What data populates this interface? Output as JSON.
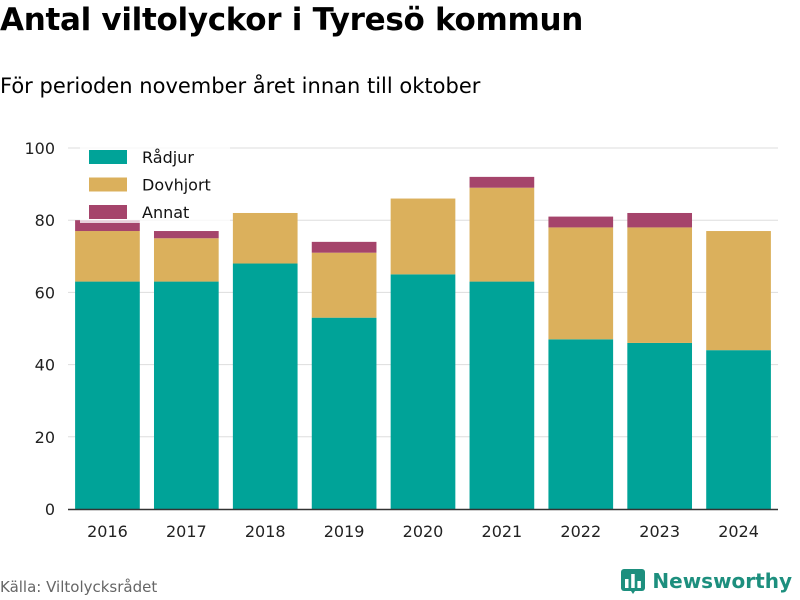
{
  "title": "Antal viltolyckor i Tyresö kommun",
  "subtitle": "För perioden november året innan till oktober",
  "source": "Källa: Viltolycksrådet",
  "brand": {
    "name": "Newsworthy",
    "icon": "bar-chart-logo"
  },
  "colors": {
    "Rådjur": "#00a398",
    "Dovhjort": "#dbb05c",
    "Annat": "#a5446b"
  },
  "chart_data": {
    "type": "bar",
    "stacked": true,
    "categories": [
      "2016",
      "2017",
      "2018",
      "2019",
      "2020",
      "2021",
      "2022",
      "2023",
      "2024"
    ],
    "series": [
      {
        "name": "Rådjur",
        "values": [
          63,
          63,
          68,
          53,
          65,
          63,
          47,
          46,
          44
        ]
      },
      {
        "name": "Dovhjort",
        "values": [
          14,
          12,
          14,
          18,
          21,
          26,
          31,
          32,
          33
        ]
      },
      {
        "name": "Annat",
        "values": [
          3,
          2,
          0,
          3,
          0,
          3,
          3,
          4,
          0
        ]
      }
    ],
    "ylim": [
      0,
      100
    ],
    "yticks": [
      0,
      20,
      40,
      60,
      80,
      100
    ],
    "grid": true,
    "legend": "top-left"
  }
}
